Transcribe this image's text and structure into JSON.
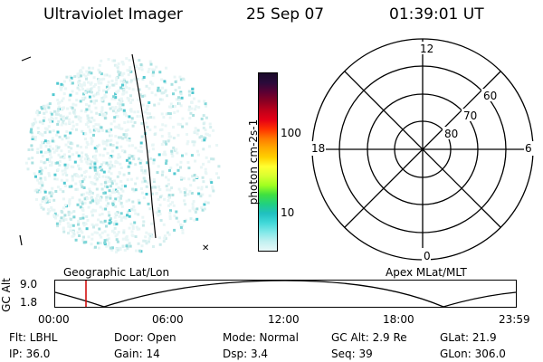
{
  "header": {
    "title": "Ultraviolet Imager",
    "date": "25 Sep 07",
    "time": "01:39:01 UT"
  },
  "colorbar": {
    "label": "photon cm-2s-1",
    "ticks": [
      "100",
      "10"
    ],
    "colors": [
      "#1a0a2a",
      "#2a0a3a",
      "#5a0033",
      "#8a0022",
      "#c0001a",
      "#e60015",
      "#ff3300",
      "#ff7a00",
      "#ffaa00",
      "#ffd000",
      "#ffff30",
      "#d8ff30",
      "#a0ff20",
      "#40e040",
      "#20d080",
      "#20c0c0",
      "#40d8d8",
      "#80e8e8",
      "#c0f0f0",
      "#e8f8f8"
    ]
  },
  "polar_plot": {
    "mlt_labels": [
      "12",
      "6",
      "0",
      "18"
    ],
    "lat_labels": [
      "60",
      "70",
      "80"
    ]
  },
  "timeline": {
    "left_label": "Geographic Lat/Lon",
    "right_label": "Apex MLat/MLT",
    "ylabel": "GC Alt",
    "ytick_top": "9.0",
    "ytick_bottom": "1.8",
    "xticks": [
      "00:00",
      "06:00",
      "12:00",
      "18:00",
      "23:59"
    ]
  },
  "info": {
    "flt": "Flt: LBHL",
    "door": "Door: Open",
    "mode": "Mode: Normal",
    "gc_alt": "GC Alt: 2.9 Re",
    "glat": "GLat:  21.9",
    "ip": "IP: 36.0",
    "gain": "Gain: 14",
    "dsp": "Dsp:     3.4",
    "seq": "Seq: 39",
    "glon": "GLon: 306.0"
  }
}
